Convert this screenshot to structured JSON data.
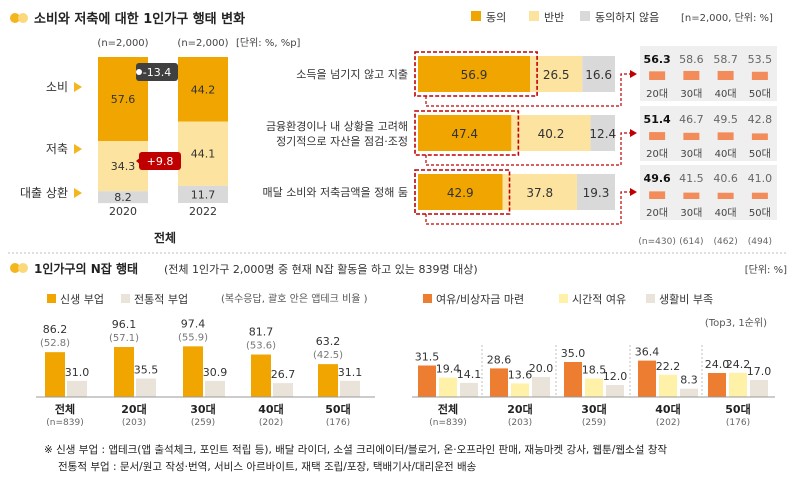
{
  "colors": {
    "orange_dark": "#F0A500",
    "yellow_light": "#FCE3A0",
    "grey": "#D9D9D9",
    "red": "#C00000",
    "dark_grey": "#595959",
    "rust": "#ED7D31",
    "beige": "#EAE3DA",
    "pale_yellow": "#FFF2A8",
    "title_dot": "#F3B61F"
  },
  "top": {
    "title": "소비와 저축에 대한 1인가구 행태 변화",
    "legend": [
      "동의",
      "반반",
      "동의하지 않음"
    ],
    "legend_note": "[n=2,000, 단위: %]",
    "stack": {
      "n_labels": [
        "(n=2,000)",
        "(n=2,000)"
      ],
      "unit": "[단위: %, %p]",
      "row_labels": [
        "소비",
        "저축",
        "대출 상환"
      ],
      "years": [
        "2020",
        "2022"
      ],
      "total_label": "전체",
      "change_consumption": "-13.4",
      "change_saving": "+9.8"
    },
    "agree_rows": [
      "소득을 넘기지 않고 지출",
      [
        "금융환경이나 내 상황을 고려해",
        "정기적으로 자산을 점검·조정"
      ],
      "매달 소비와 저축금액을 정해 둠"
    ],
    "age_labels": [
      "20대",
      "30대",
      "40대",
      "50대"
    ],
    "age_n": [
      "(n=430)",
      "(614)",
      "(462)",
      "(494)"
    ]
  },
  "bottom": {
    "title": "1인가구의 N잡 행태",
    "subtitle": "(전체 1인가구 2,000명 중 현재 N잡 활동을 하고 있는 839명 대상)",
    "unit": "[단위: %]",
    "left_legend": [
      "신생 부업",
      "전통적 부업"
    ],
    "left_note": "(복수응답, 괄호 안은 앱테크 비율 )",
    "right_legend": [
      "여유/비상자금 마련",
      "시간적 여유",
      "생활비 부족"
    ],
    "right_note": "(Top3, 1순위)",
    "groups": [
      "전체",
      "20대",
      "30대",
      "40대",
      "50대"
    ],
    "group_n": [
      "(n=839)",
      "(203)",
      "(259)",
      "(202)",
      "(176)"
    ],
    "apptech": [
      "(52.8)",
      "(57.1)",
      "(55.9)",
      "(53.6)",
      "(42.5)"
    ],
    "footnote1": "※ 신생 부업 : 앱테크(앱 출석체크, 포인트 적립 등), 배달 라이더, 소셜 크리에이터/블로거, 온·오프라인 판매, 재능마켓 강사, 웹툰/웹소설 창작",
    "footnote2": "전통적 부업 : 문서/원고 작성·번역, 서비스 아르바이트,  재택 조립/포장, 택배기사/대리운전 배송"
  },
  "chart_data": [
    {
      "type": "bar",
      "stacked": true,
      "title": "소비와 저축에 대한 1인가구 행태 변화",
      "categories": [
        "2020",
        "2022"
      ],
      "series": [
        {
          "name": "소비",
          "values": [
            57.6,
            44.2
          ]
        },
        {
          "name": "저축",
          "values": [
            34.3,
            44.1
          ]
        },
        {
          "name": "대출 상환",
          "values": [
            8.2,
            11.7
          ]
        }
      ],
      "ylim": [
        0,
        100
      ]
    },
    {
      "type": "bar",
      "stacked": true,
      "orientation": "horizontal",
      "categories": [
        "소득을 넘기지 않고 지출",
        "금융환경이나 내 상황을 고려해 정기적으로 자산을 점검·조정",
        "매달 소비와 저축금액을 정해 둠"
      ],
      "series": [
        {
          "name": "동의",
          "values": [
            56.9,
            47.4,
            42.9
          ]
        },
        {
          "name": "반반",
          "values": [
            26.5,
            40.2,
            37.8
          ]
        },
        {
          "name": "동의하지 않음",
          "values": [
            16.6,
            12.4,
            19.3
          ]
        }
      ],
      "xlim": [
        0,
        100
      ]
    },
    {
      "type": "bar",
      "categories": [
        "20대",
        "30대",
        "40대",
        "50대"
      ],
      "series": [
        {
          "name": "소득을 넘기지 않고 지출",
          "values": [
            56.3,
            58.6,
            58.7,
            53.5
          ]
        },
        {
          "name": "금융환경이나 내 상황을 고려해 정기적으로 자산을 점검·조정",
          "values": [
            51.4,
            46.7,
            49.5,
            42.8
          ]
        },
        {
          "name": "매달 소비와 저축금액을 정해 둠",
          "values": [
            49.6,
            41.5,
            40.6,
            41.0
          ]
        }
      ]
    },
    {
      "type": "bar",
      "title": "1인가구의 N잡 행태",
      "categories": [
        "전체",
        "20대",
        "30대",
        "40대",
        "50대"
      ],
      "series": [
        {
          "name": "신생 부업",
          "values": [
            86.2,
            96.1,
            97.4,
            81.7,
            63.2
          ]
        },
        {
          "name": "전통적 부업",
          "values": [
            31.0,
            35.5,
            30.9,
            26.7,
            31.1
          ]
        }
      ],
      "ylim": [
        0,
        100
      ]
    },
    {
      "type": "bar",
      "categories": [
        "전체",
        "20대",
        "30대",
        "40대",
        "50대"
      ],
      "series": [
        {
          "name": "여유/비상자금 마련",
          "values": [
            31.5,
            28.6,
            35.0,
            36.4,
            24.0
          ]
        },
        {
          "name": "시간적 여유",
          "values": [
            19.4,
            13.6,
            18.5,
            22.2,
            24.2
          ]
        },
        {
          "name": "생활비 부족",
          "values": [
            14.1,
            20.0,
            12.0,
            8.3,
            17.0
          ]
        }
      ],
      "ylim": [
        0,
        40
      ]
    }
  ]
}
